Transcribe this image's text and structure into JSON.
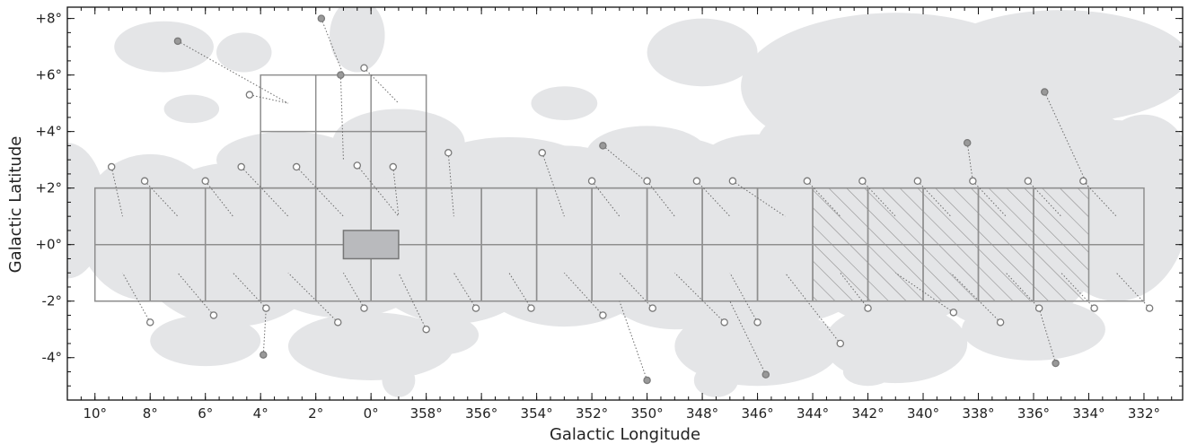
{
  "chart_data": {
    "type": "scatter",
    "subtype": "galactic-plane survey footprint map",
    "xlabel": "Galactic Longitude",
    "ylabel": "Galactic Latitude",
    "xlim": [
      11,
      330.6
    ],
    "ylim": [
      -5.5,
      8.4
    ],
    "x_reversed": true,
    "grid": false,
    "x_ticks": [
      {
        "value": 10,
        "label": "10°"
      },
      {
        "value": 8,
        "label": "8°"
      },
      {
        "value": 6,
        "label": "6°"
      },
      {
        "value": 4,
        "label": "4°"
      },
      {
        "value": 2,
        "label": "2°"
      },
      {
        "value": 0,
        "label": "0°"
      },
      {
        "value": 358,
        "label": "358°"
      },
      {
        "value": 356,
        "label": "356°"
      },
      {
        "value": 354,
        "label": "354°"
      },
      {
        "value": 352,
        "label": "352°"
      },
      {
        "value": 350,
        "label": "350°"
      },
      {
        "value": 348,
        "label": "348°"
      },
      {
        "value": 346,
        "label": "346°"
      },
      {
        "value": 344,
        "label": "344°"
      },
      {
        "value": 342,
        "label": "342°"
      },
      {
        "value": 340,
        "label": "340°"
      },
      {
        "value": 338,
        "label": "338°"
      },
      {
        "value": 336,
        "label": "336°"
      },
      {
        "value": 334,
        "label": "334°"
      },
      {
        "value": 332,
        "label": "332°"
      }
    ],
    "y_ticks": [
      {
        "value": 8,
        "label": "+8°"
      },
      {
        "value": 6,
        "label": "+6°"
      },
      {
        "value": 4,
        "label": "+4°"
      },
      {
        "value": 2,
        "label": "+2°"
      },
      {
        "value": 0,
        "label": "+0°"
      },
      {
        "value": -2,
        "label": "-2°"
      },
      {
        "value": -4,
        "label": "-4°"
      }
    ],
    "colors": {
      "background_emission": "#e4e5e7",
      "tile_stroke": "#8f8f8f",
      "central_box_fill": "#b9babd",
      "open_marker_stroke": "#7a7a7a",
      "filled_marker_fill": "#999999",
      "connector": "#6a6a6a"
    },
    "tiles_main": [
      [
        10,
        8
      ],
      [
        8,
        6
      ],
      [
        6,
        4
      ],
      [
        4,
        2
      ],
      [
        2,
        0
      ],
      [
        0,
        358
      ],
      [
        358,
        356
      ],
      [
        356,
        354
      ],
      [
        354,
        352
      ],
      [
        352,
        350
      ],
      [
        350,
        348
      ],
      [
        348,
        346
      ],
      [
        346,
        344
      ]
    ],
    "tiles_hatched": [
      [
        344,
        342
      ],
      [
        342,
        340
      ],
      [
        340,
        338
      ],
      [
        338,
        336
      ],
      [
        336,
        334
      ]
    ],
    "tiles_main_extent": {
      "x": [
        10,
        332
      ],
      "y": [
        -2,
        2
      ]
    },
    "tiles_upper": {
      "x": [
        4,
        358
      ],
      "y": [
        2,
        6
      ],
      "rows_at": [
        4
      ],
      "cols_at": [
        2,
        0
      ]
    },
    "central_box": {
      "x": [
        1,
        359
      ],
      "y": [
        -0.5,
        0.5
      ]
    },
    "markers": [
      {
        "l": 9.4,
        "b": 2.75,
        "filled": false,
        "tx": 9,
        "ty": 1.0
      },
      {
        "l": 8.2,
        "b": 2.25,
        "filled": false,
        "tx": 7,
        "ty": 1.0
      },
      {
        "l": 7.0,
        "b": 7.2,
        "filled": true,
        "tx": 3,
        "ty": 5.0
      },
      {
        "l": 6.0,
        "b": 2.25,
        "filled": false,
        "tx": 5,
        "ty": 1.0
      },
      {
        "l": 4.7,
        "b": 2.75,
        "filled": false,
        "tx": 3,
        "ty": 1.0
      },
      {
        "l": 4.4,
        "b": 5.3,
        "filled": false,
        "tx": 3,
        "ty": 5.0
      },
      {
        "l": 2.7,
        "b": 2.75,
        "filled": false,
        "tx": 1,
        "ty": 1.0
      },
      {
        "l": 1.8,
        "b": 8.0,
        "filled": true,
        "tx": 1,
        "ty": 6.0
      },
      {
        "l": 1.1,
        "b": 6.0,
        "filled": true,
        "tx": 1,
        "ty": 3.0
      },
      {
        "l": 0.5,
        "b": 2.8,
        "filled": false,
        "tx": 359,
        "ty": 1.0
      },
      {
        "l": 0.25,
        "b": 6.25,
        "filled": false,
        "tx": 359,
        "ty": 5.0
      },
      {
        "l": 359.2,
        "b": 2.75,
        "filled": false,
        "tx": 359,
        "ty": 1.0
      },
      {
        "l": 357.2,
        "b": 3.25,
        "filled": false,
        "tx": 357,
        "ty": 1.0
      },
      {
        "l": 353.8,
        "b": 3.25,
        "filled": false,
        "tx": 353,
        "ty": 1.0
      },
      {
        "l": 351.6,
        "b": 3.5,
        "filled": true,
        "tx": 350,
        "ty": 2.2
      },
      {
        "l": 352.0,
        "b": 2.25,
        "filled": false,
        "tx": 351,
        "ty": 1.0
      },
      {
        "l": 350.0,
        "b": 2.25,
        "filled": false,
        "tx": 349,
        "ty": 1.0
      },
      {
        "l": 348.2,
        "b": 2.25,
        "filled": false,
        "tx": 347,
        "ty": 1.0
      },
      {
        "l": 346.9,
        "b": 2.25,
        "filled": false,
        "tx": 345,
        "ty": 1.0
      },
      {
        "l": 344.2,
        "b": 2.25,
        "filled": false,
        "tx": 343,
        "ty": 1.0
      },
      {
        "l": 342.2,
        "b": 2.25,
        "filled": false,
        "tx": 341,
        "ty": 1.0
      },
      {
        "l": 340.2,
        "b": 2.25,
        "filled": false,
        "tx": 339,
        "ty": 1.0
      },
      {
        "l": 338.4,
        "b": 3.6,
        "filled": true,
        "tx": 338.2,
        "ty": 2.25
      },
      {
        "l": 338.2,
        "b": 2.25,
        "filled": false,
        "tx": 337,
        "ty": 1.0
      },
      {
        "l": 336.2,
        "b": 2.25,
        "filled": false,
        "tx": 335,
        "ty": 1.0
      },
      {
        "l": 335.6,
        "b": 5.4,
        "filled": true,
        "tx": 334,
        "ty": 2.0
      },
      {
        "l": 334.2,
        "b": 2.25,
        "filled": false,
        "tx": 333,
        "ty": 1.0
      },
      {
        "l": 8.0,
        "b": -2.75,
        "filled": false,
        "tx": 9,
        "ty": -1.0
      },
      {
        "l": 5.7,
        "b": -2.5,
        "filled": false,
        "tx": 7,
        "ty": -1.0
      },
      {
        "l": 3.8,
        "b": -2.25,
        "filled": false,
        "tx": 5,
        "ty": -1.0
      },
      {
        "l": 3.9,
        "b": -3.9,
        "filled": true,
        "tx": 3.8,
        "ty": -2.25
      },
      {
        "l": 1.2,
        "b": -2.75,
        "filled": false,
        "tx": 3,
        "ty": -1.0
      },
      {
        "l": 0.25,
        "b": -2.25,
        "filled": false,
        "tx": 1,
        "ty": -1.0
      },
      {
        "l": 358.0,
        "b": -3.0,
        "filled": false,
        "tx": 359,
        "ty": -1.0
      },
      {
        "l": 356.2,
        "b": -2.25,
        "filled": false,
        "tx": 357,
        "ty": -1.0
      },
      {
        "l": 354.2,
        "b": -2.25,
        "filled": false,
        "tx": 355,
        "ty": -1.0
      },
      {
        "l": 351.6,
        "b": -2.5,
        "filled": false,
        "tx": 353,
        "ty": -1.0
      },
      {
        "l": 349.8,
        "b": -2.25,
        "filled": false,
        "tx": 351,
        "ty": -1.0
      },
      {
        "l": 350.0,
        "b": -4.8,
        "filled": true,
        "tx": 351,
        "ty": -2.0
      },
      {
        "l": 347.2,
        "b": -2.75,
        "filled": false,
        "tx": 349,
        "ty": -1.0
      },
      {
        "l": 346.0,
        "b": -2.75,
        "filled": false,
        "tx": 347,
        "ty": -1.0
      },
      {
        "l": 345.7,
        "b": -4.6,
        "filled": true,
        "tx": 347,
        "ty": -2.0
      },
      {
        "l": 343.0,
        "b": -3.5,
        "filled": false,
        "tx": 345,
        "ty": -1.0
      },
      {
        "l": 342.0,
        "b": -2.25,
        "filled": false,
        "tx": 343,
        "ty": -1.0
      },
      {
        "l": 338.9,
        "b": -2.4,
        "filled": false,
        "tx": 341,
        "ty": -1.0
      },
      {
        "l": 337.2,
        "b": -2.75,
        "filled": false,
        "tx": 339,
        "ty": -1.0
      },
      {
        "l": 335.8,
        "b": -2.25,
        "filled": false,
        "tx": 337,
        "ty": -1.0
      },
      {
        "l": 335.2,
        "b": -4.2,
        "filled": true,
        "tx": 335.8,
        "ty": -2.25
      },
      {
        "l": 333.8,
        "b": -2.25,
        "filled": false,
        "tx": 335,
        "ty": -1.0
      },
      {
        "l": 331.8,
        "b": -2.25,
        "filled": false,
        "tx": 333,
        "ty": -1.0
      }
    ],
    "background_blobs": [
      {
        "l": 11.0,
        "b": 1.2,
        "rl": 1.4,
        "rb": 2.4
      },
      {
        "l": 8.0,
        "b": 0.6,
        "rl": 2.6,
        "rb": 2.6
      },
      {
        "l": 5.0,
        "b": 0.0,
        "rl": 3.6,
        "rb": 2.9
      },
      {
        "l": 1.0,
        "b": 0.4,
        "rl": 4.0,
        "rb": 3.0
      },
      {
        "l": 357.0,
        "b": 0.2,
        "rl": 3.6,
        "rb": 3.0
      },
      {
        "l": 353.0,
        "b": 0.3,
        "rl": 4.0,
        "rb": 3.2
      },
      {
        "l": 349.0,
        "b": 0.4,
        "rl": 3.6,
        "rb": 3.4
      },
      {
        "l": 345.0,
        "b": 0.2,
        "rl": 3.8,
        "rb": 3.0
      },
      {
        "l": 341.0,
        "b": 0.3,
        "rl": 3.8,
        "rb": 3.2
      },
      {
        "l": 337.0,
        "b": 0.6,
        "rl": 3.6,
        "rb": 3.6
      },
      {
        "l": 333.0,
        "b": 1.2,
        "rl": 2.6,
        "rb": 3.2
      },
      {
        "l": 3.0,
        "b": 3.0,
        "rl": 2.6,
        "rb": 1.0
      },
      {
        "l": 359.0,
        "b": 3.6,
        "rl": 2.4,
        "rb": 1.2
      },
      {
        "l": 355.0,
        "b": 2.8,
        "rl": 2.8,
        "rb": 1.0
      },
      {
        "l": 350.0,
        "b": 3.2,
        "rl": 2.2,
        "rb": 1.0
      },
      {
        "l": 346.0,
        "b": 3.0,
        "rl": 2.0,
        "rb": 0.9
      },
      {
        "l": 341.0,
        "b": 5.6,
        "rl": 5.6,
        "rb": 2.6
      },
      {
        "l": 335.0,
        "b": 6.3,
        "rl": 4.8,
        "rb": 2.0
      },
      {
        "l": 343.0,
        "b": 3.6,
        "rl": 3.0,
        "rb": 1.4
      },
      {
        "l": 336.0,
        "b": 3.6,
        "rl": 3.6,
        "rb": 1.4
      },
      {
        "l": 332.0,
        "b": 3.0,
        "rl": 1.6,
        "rb": 1.6
      },
      {
        "l": 348.0,
        "b": 6.8,
        "rl": 2.0,
        "rb": 1.2
      },
      {
        "l": 0.5,
        "b": 7.4,
        "rl": 1.0,
        "rb": 1.3
      },
      {
        "l": 7.5,
        "b": 7.0,
        "rl": 1.8,
        "rb": 0.9
      },
      {
        "l": 4.6,
        "b": 6.8,
        "rl": 1.0,
        "rb": 0.7
      },
      {
        "l": 353.0,
        "b": 5.0,
        "rl": 1.2,
        "rb": 0.6
      },
      {
        "l": 6.5,
        "b": 4.8,
        "rl": 1.0,
        "rb": 0.5
      },
      {
        "l": 6.0,
        "b": -3.4,
        "rl": 2.0,
        "rb": 0.9
      },
      {
        "l": 0.0,
        "b": -3.6,
        "rl": 3.0,
        "rb": 1.2
      },
      {
        "l": 357.5,
        "b": -3.2,
        "rl": 1.4,
        "rb": 0.7
      },
      {
        "l": 346.0,
        "b": -3.6,
        "rl": 3.0,
        "rb": 1.4
      },
      {
        "l": 341.0,
        "b": -3.5,
        "rl": 2.6,
        "rb": 1.4
      },
      {
        "l": 336.0,
        "b": -3.0,
        "rl": 2.6,
        "rb": 1.1
      },
      {
        "l": 359.0,
        "b": -4.8,
        "rl": 0.6,
        "rb": 0.6
      },
      {
        "l": 347.5,
        "b": -4.8,
        "rl": 0.8,
        "rb": 0.6
      },
      {
        "l": 342.0,
        "b": -4.5,
        "rl": 0.9,
        "rb": 0.5
      }
    ]
  }
}
